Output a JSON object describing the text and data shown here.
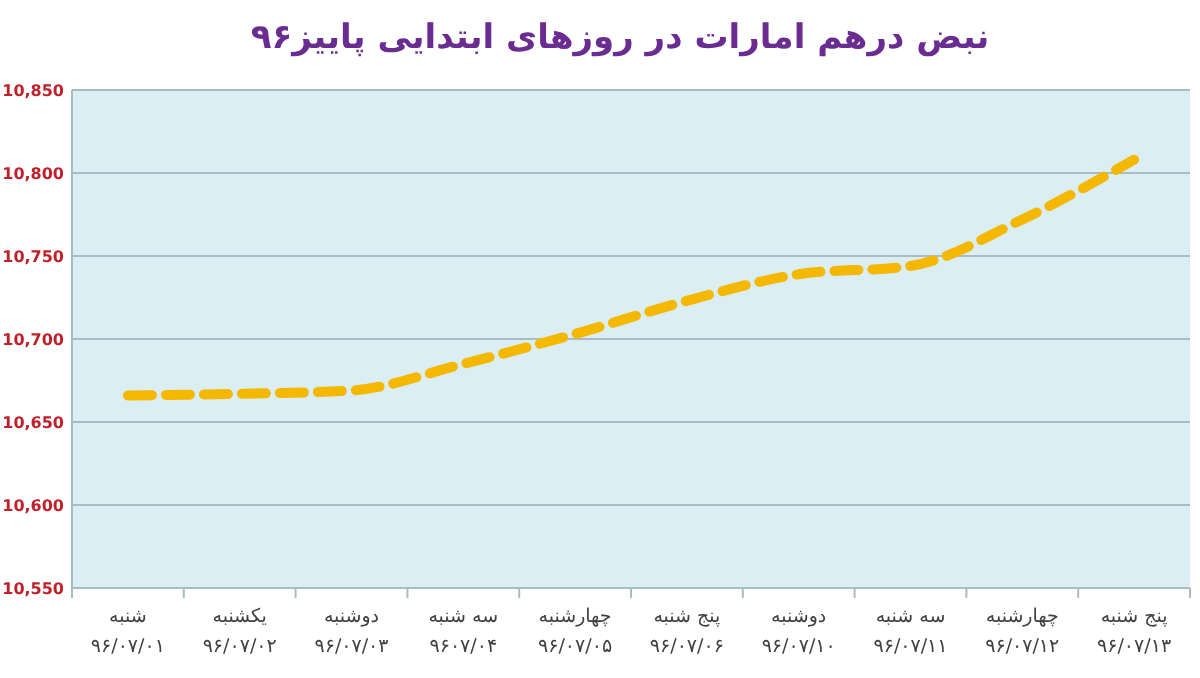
{
  "chart_data": {
    "type": "line",
    "title": "نبض درهم امارات در روزهای ابتدایی پاییز۹۶",
    "categories": [
      "شنبه\n۹۶/۰۷/۰۱",
      "یکشنبه\n۹۶/۰۷/۰۲",
      "دوشنبه\n۹۶/۰۷/۰۳",
      "سه شنبه\n۹۶۰۷/۰۴",
      "چهارشنبه\n۹۶/۰۷/۰۵",
      "پنج شنبه\n۹۶/۰۷/۰۶",
      "دوشنبه\n۹۶/۰۷/۱۰",
      "سه شنبه\n۹۶/۰۷/۱۱",
      "چهارشنبه\n۹۶/۰۷/۱۲",
      "پنج شنبه\n۹۶/۰۷/۱۳"
    ],
    "series": [
      {
        "color": "#f5b800",
        "values": [
          10666,
          10667,
          10669,
          10685,
          10703,
          10723,
          10739,
          10744,
          10772,
          10808
        ]
      }
    ],
    "ylim": [
      10550,
      10850
    ],
    "yticks": [
      {
        "value": 10550,
        "label": "10,550"
      },
      {
        "value": 10600,
        "label": "10,600"
      },
      {
        "value": 10650,
        "label": "10,650"
      },
      {
        "value": 10700,
        "label": "10,700"
      },
      {
        "value": 10750,
        "label": "10,750"
      },
      {
        "value": 10800,
        "label": "10,800"
      },
      {
        "value": 10850,
        "label": "10,850"
      }
    ],
    "grid": "y",
    "line_style": "dashed"
  }
}
